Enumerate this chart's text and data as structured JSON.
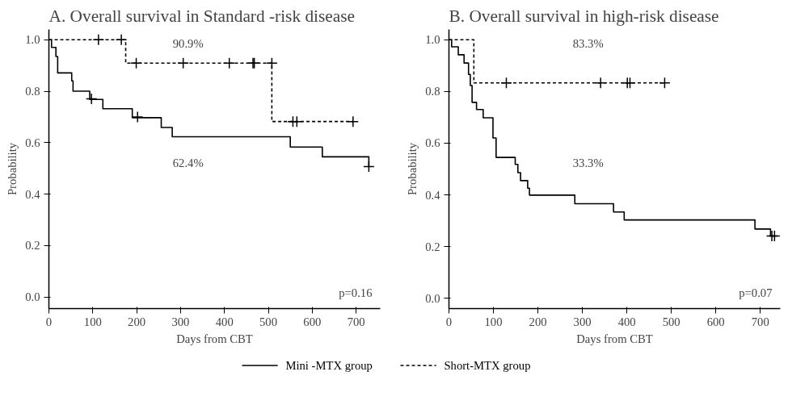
{
  "chart_data": [
    {
      "type": "step",
      "title": "A. Overall survival in Standard -risk disease",
      "xlabel": "Days from CBT",
      "ylabel": "Probability",
      "xlim": [
        0,
        755
      ],
      "ylim": [
        -0.045,
        1.04
      ],
      "xticks": [
        0,
        100,
        200,
        300,
        400,
        500,
        600,
        700
      ],
      "yticks": [
        {
          "value": 0,
          "label": "0.0"
        },
        {
          "value": 0.2,
          "label": "0.2"
        },
        {
          "value": 0.4,
          "label": "0.4"
        },
        {
          "value": 0.6,
          "label": "0.6"
        },
        {
          "value": 0.8,
          "label": "0.8"
        },
        {
          "value": 1,
          "label": "1.0"
        }
      ],
      "grid": false,
      "legend": "bottom",
      "series": [
        {
          "name": "Mini -MTX group",
          "color": "#000000",
          "line_style": "solid",
          "x": [
            0,
            6,
            16,
            20,
            52,
            55,
            93,
            123,
            190,
            256,
            281,
            550,
            623,
            729
          ],
          "values": [
            1.0,
            0.97,
            0.935,
            0.871,
            0.84,
            0.8,
            0.768,
            0.732,
            0.697,
            0.659,
            0.623,
            0.583,
            0.545,
            0.507
          ]
        },
        {
          "name": "Short-MTX group",
          "color": "#000000",
          "line_style": "dashed",
          "x": [
            0,
            175,
            508,
            693
          ],
          "values": [
            1.0,
            0.909,
            0.682,
            0.682
          ]
        },
        {
          "type": "scatter",
          "marker": "cross",
          "color": "#000000",
          "x": [
            97,
            202,
            729,
            113,
            165,
            199,
            306,
            411,
            465,
            468,
            508,
            556,
            565,
            693
          ],
          "values": [
            0.77,
            0.7,
            0.507,
            1.0,
            1.0,
            0.909,
            0.909,
            0.909,
            0.909,
            0.909,
            0.909,
            0.682,
            0.682,
            0.682
          ]
        }
      ],
      "annotations": [
        "90.9%",
        "62.4%",
        "p=0.16"
      ]
    },
    {
      "type": "step",
      "title": "B. Overall survival in high-risk disease",
      "xlabel": "Days from CBT",
      "ylabel": "Probability",
      "xlim": [
        0,
        745
      ],
      "ylim": [
        -0.04,
        1.04
      ],
      "xticks": [
        0,
        100,
        200,
        300,
        400,
        500,
        600,
        700
      ],
      "yticks": [
        {
          "value": 0,
          "label": "0.0"
        },
        {
          "value": 0.2,
          "label": "0.2"
        },
        {
          "value": 0.4,
          "label": "0.4"
        },
        {
          "value": 0.6,
          "label": "0.6"
        },
        {
          "value": 0.8,
          "label": "0.8"
        },
        {
          "value": 1,
          "label": "1.0"
        }
      ],
      "grid": false,
      "series": [
        {
          "color": "#000000",
          "line_style": "solid",
          "x": [
            0,
            6,
            21,
            34,
            44,
            48,
            52,
            62,
            77,
            99,
            106,
            149,
            155,
            161,
            177,
            181,
            283,
            370,
            394,
            688,
            723,
            732
          ],
          "values": [
            1.0,
            0.973,
            0.942,
            0.91,
            0.866,
            0.823,
            0.758,
            0.73,
            0.698,
            0.62,
            0.545,
            0.518,
            0.486,
            0.455,
            0.426,
            0.399,
            0.366,
            0.334,
            0.303,
            0.268,
            0.241,
            0.241
          ]
        },
        {
          "color": "#000000",
          "line_style": "dashed",
          "x": [
            0,
            56,
            485
          ],
          "values": [
            1.0,
            0.833,
            0.833
          ]
        },
        {
          "type": "scatter",
          "marker": "cross",
          "color": "#000000",
          "x": [
            129,
            341,
            401,
            407,
            485,
            726,
            732
          ],
          "values": [
            0.833,
            0.833,
            0.833,
            0.833,
            0.833,
            0.241,
            0.241
          ]
        }
      ],
      "annotations": [
        "83.3%",
        "33.3%",
        "p=0.07"
      ]
    }
  ]
}
